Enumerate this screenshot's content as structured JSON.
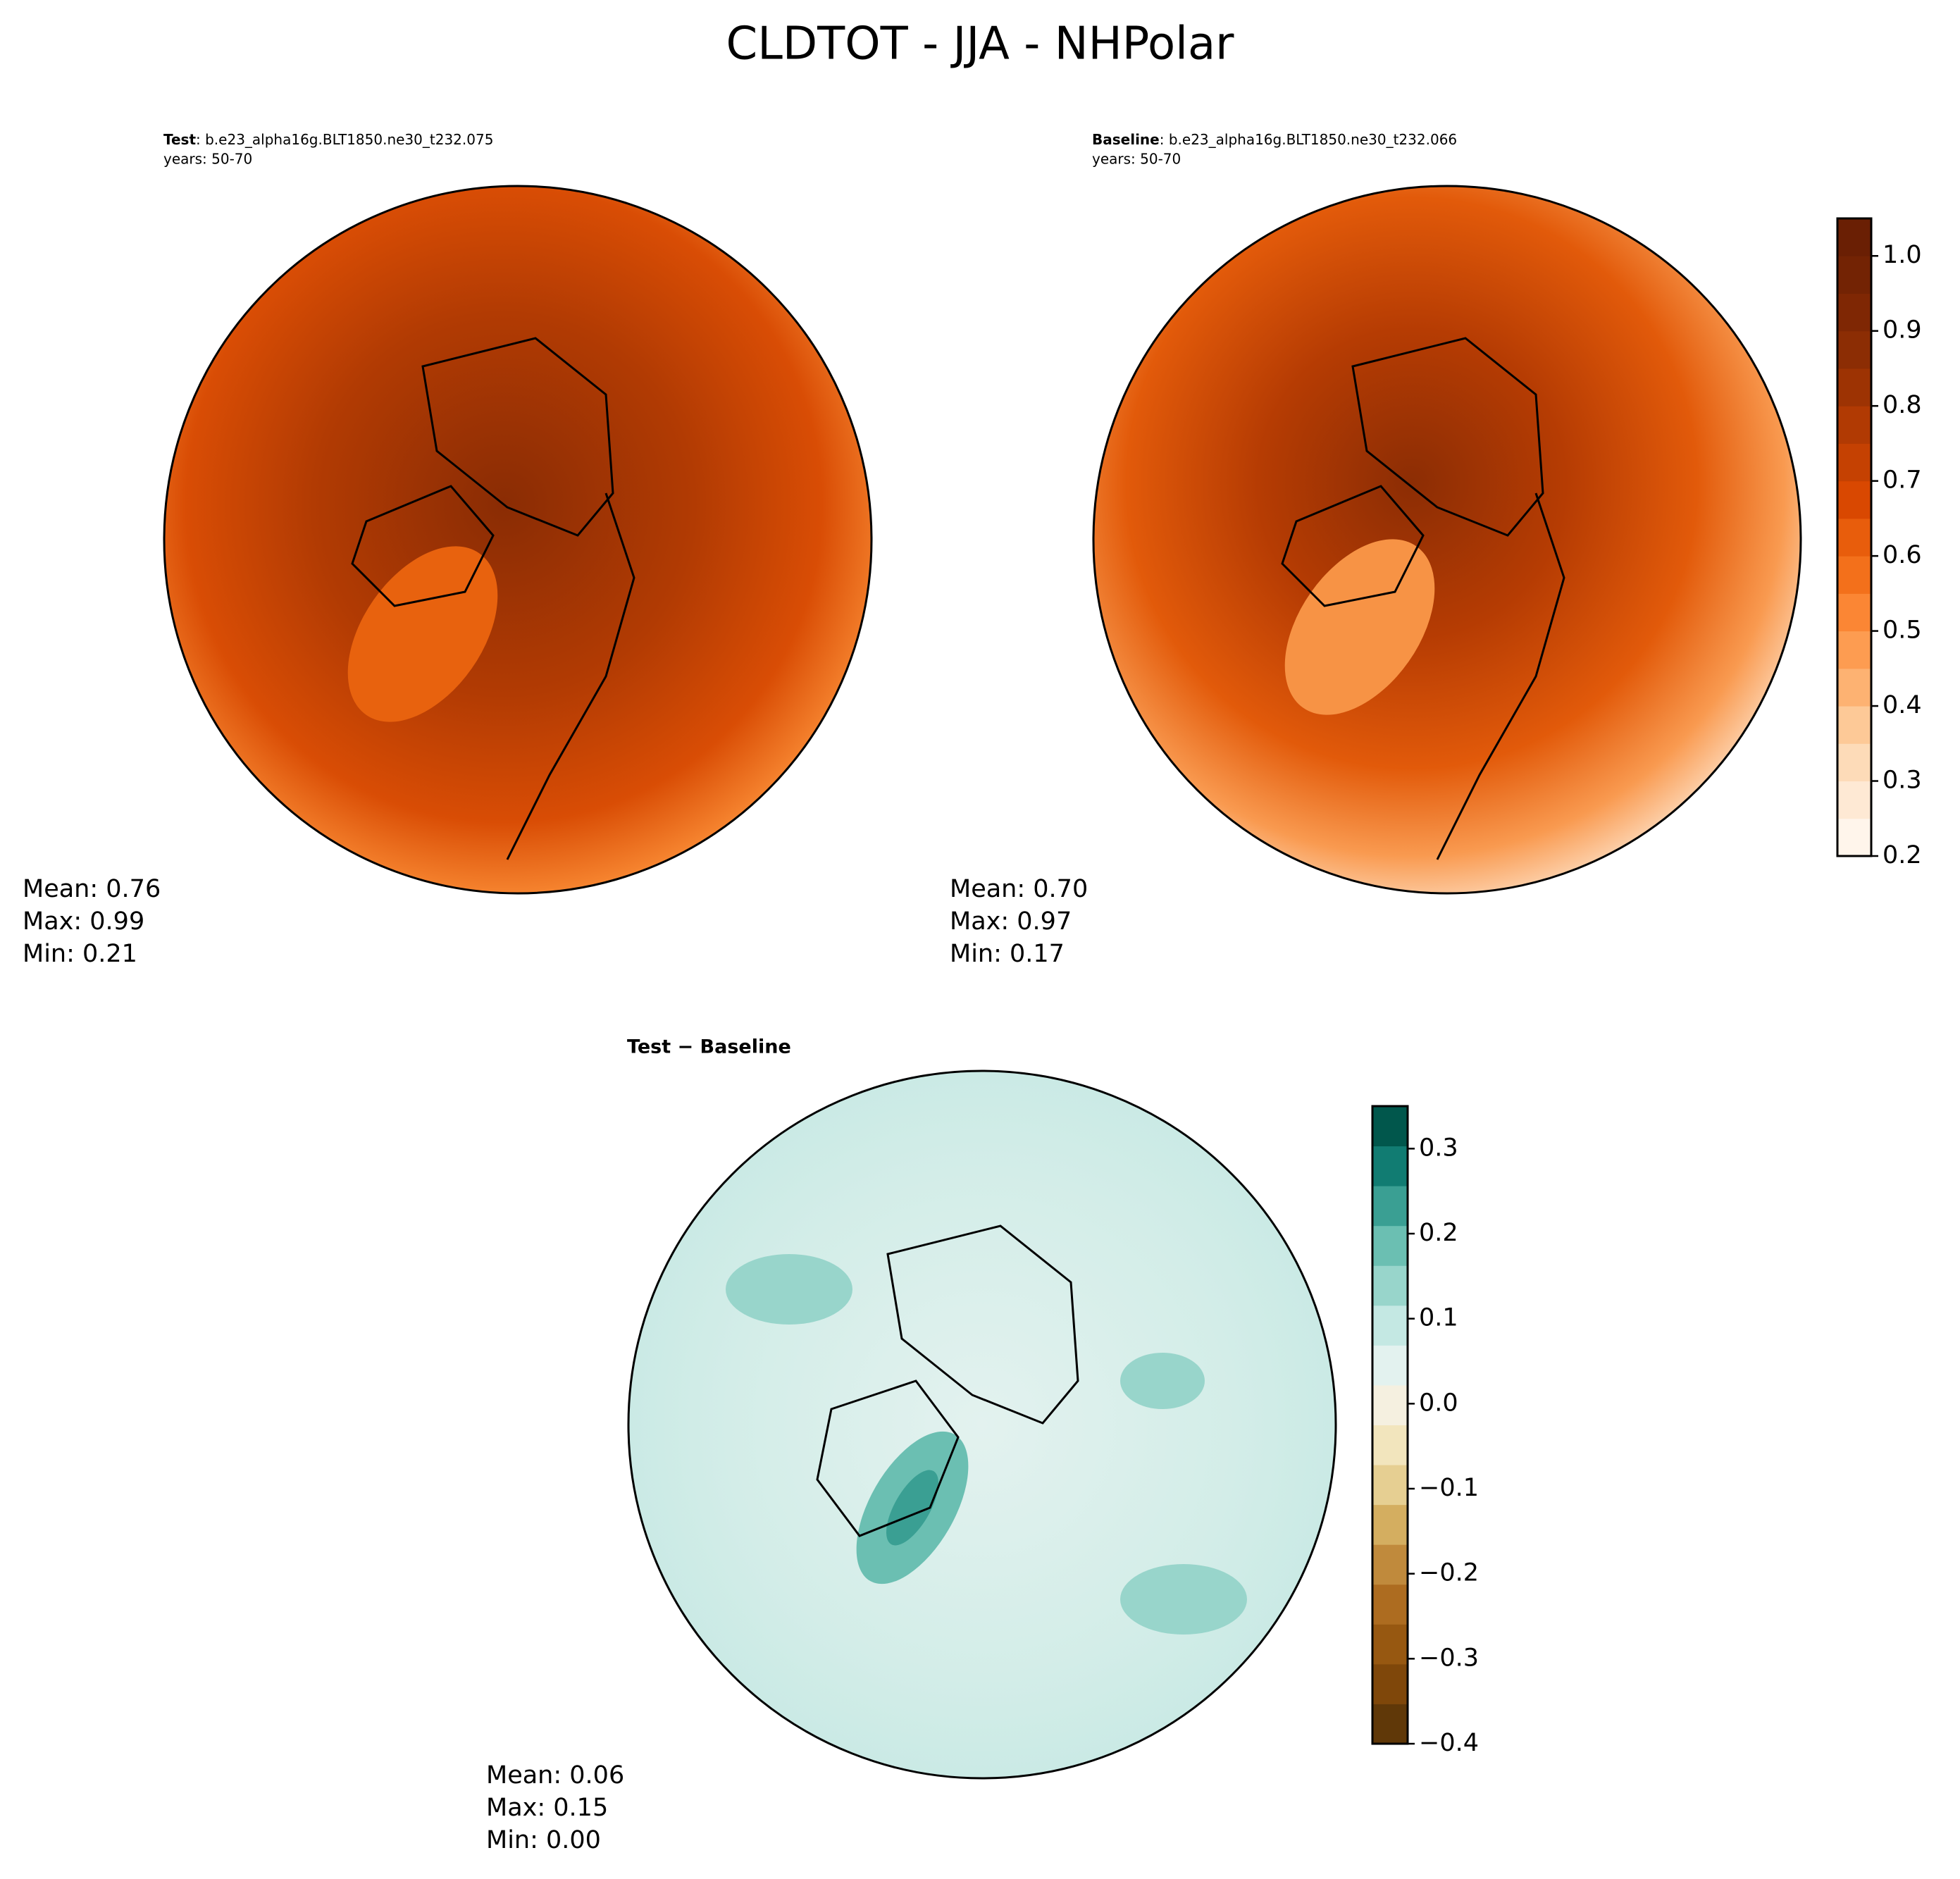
{
  "title": "CLDTOT - JJA - NHPolar",
  "panels": [
    {
      "label": "Test",
      "case": ": b.e23_alpha16g.BLT1850.ne30_t232.075",
      "years": "years: 50-70",
      "stats": [
        "Mean:  0.76",
        "Max:  0.99",
        "Min:  0.21"
      ]
    },
    {
      "label": "Baseline",
      "case": ": b.e23_alpha16g.BLT1850.ne30_t232.066",
      "years": "years: 50-70",
      "stats": [
        "Mean:  0.70",
        "Max:  0.97",
        "Min:  0.17"
      ]
    }
  ],
  "diff": {
    "title": "Test − Baseline",
    "stats": [
      "Mean:  0.06",
      "Max:  0.15",
      "Min:  0.00"
    ]
  },
  "colorbars": [
    {
      "lim": [
        0.2,
        1.05
      ],
      "ticks": [
        0.2,
        0.3,
        0.4,
        0.5,
        0.6,
        0.7,
        0.8,
        0.9,
        {
          "value": 1.0,
          "label": "1.0"
        }
      ],
      "colors": [
        "#fff5eb",
        "#fee9d4",
        "#fddbb8",
        "#fdc997",
        "#fdb272",
        "#fd9c51",
        "#fb8634",
        "#f3701b",
        "#e85d0c",
        "#d94801",
        "#c54102",
        "#b13a03",
        "#9d3303",
        "#8c2d04",
        "#7f2704",
        "#732304",
        "#6a1f04"
      ]
    },
    {
      "lim": [
        -0.4,
        0.35
      ],
      "ticks": [
        {
          "value": -0.4,
          "label": "−0.4"
        },
        {
          "value": -0.3,
          "label": "−0.3"
        },
        {
          "value": -0.2,
          "label": "−0.2"
        },
        {
          "value": -0.1,
          "label": "−0.1"
        },
        {
          "value": 0,
          "label": "0.0"
        },
        0.1,
        0.2,
        0.3
      ],
      "colors": [
        "#603808",
        "#7f470a",
        "#975811",
        "#ad6c20",
        "#c08a3c",
        "#d4ae60",
        "#e6cf92",
        "#f2e5bd",
        "#f5f0e0",
        "#e3f2ef",
        "#c4e8e3",
        "#98d5cb",
        "#6bbfb2",
        "#3a9f93",
        "#117c72",
        "#01574c"
      ]
    }
  ]
}
